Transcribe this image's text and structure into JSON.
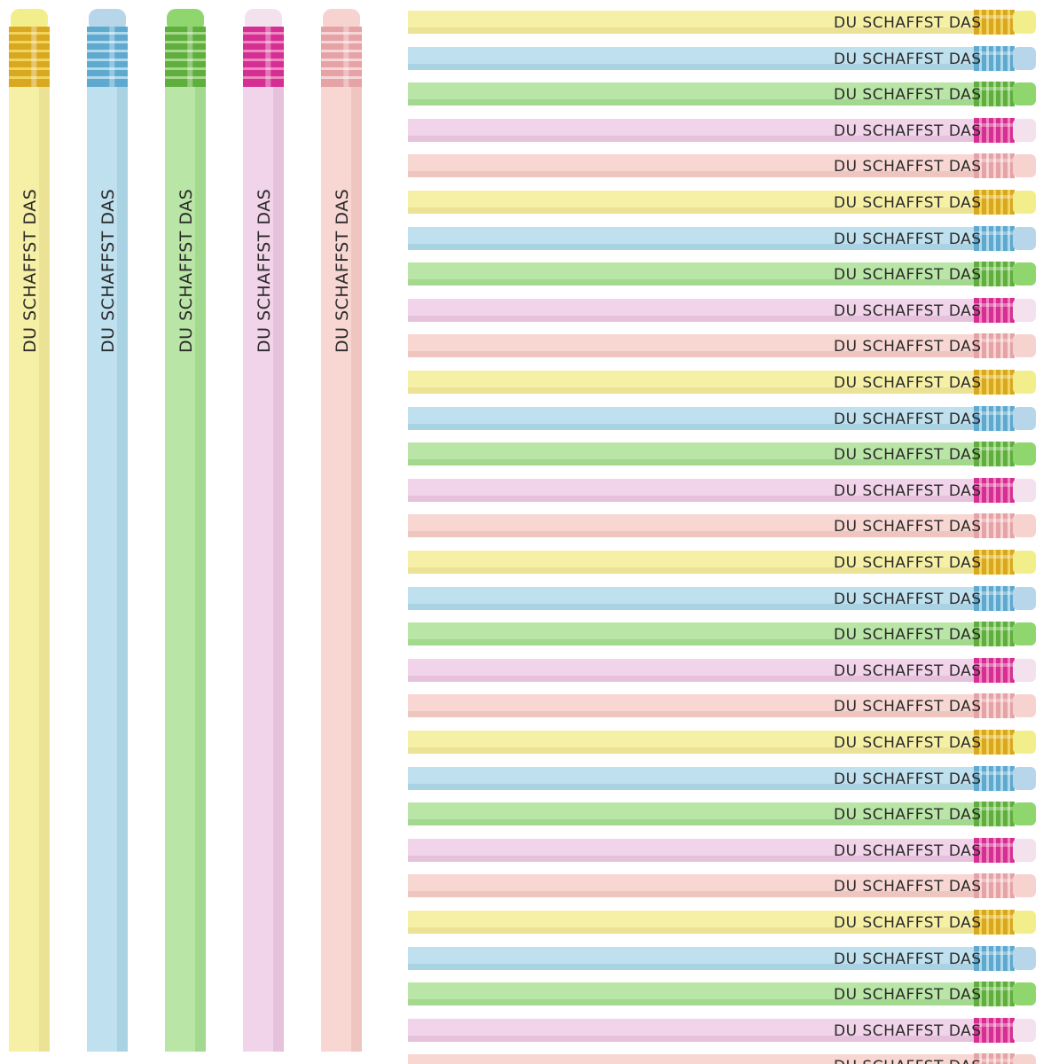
{
  "slogan": "DU SCHAFFST DAS",
  "palette": [
    {
      "name": "yellow",
      "body": "#f6efa6",
      "body_shade": "#ece295",
      "ferrule": "#d9a821",
      "ferrule_hi": "#f7dd6a",
      "eraser": "#f2ee8c"
    },
    {
      "name": "blue",
      "body": "#bfe0ee",
      "body_shade": "#a9d2e3",
      "ferrule": "#5fa9cf",
      "ferrule_hi": "#c3e6f5",
      "eraser": "#b7d6ea"
    },
    {
      "name": "green",
      "body": "#b9e6a7",
      "body_shade": "#a2d98e",
      "ferrule": "#5fae3e",
      "ferrule_hi": "#b5e59c",
      "eraser": "#8fd66e"
    },
    {
      "name": "pink",
      "body": "#f1d3ea",
      "body_shade": "#e6c1dc",
      "ferrule": "#d62f93",
      "ferrule_hi": "#f59ccc",
      "eraser": "#f4e1ee"
    },
    {
      "name": "peach",
      "body": "#f8d7d3",
      "body_shade": "#efc5c0",
      "ferrule": "#e5a3a6",
      "ferrule_hi": "#fbe1e2",
      "eraser": "#f6d3cf"
    }
  ],
  "vertical_pencils": [
    "yellow",
    "blue",
    "green",
    "pink",
    "peach"
  ],
  "horizontal_pencils": [
    "yellow",
    "blue",
    "green",
    "pink",
    "peach",
    "yellow",
    "blue",
    "green",
    "pink",
    "peach",
    "yellow",
    "blue",
    "green",
    "pink",
    "peach",
    "yellow",
    "blue",
    "green",
    "pink",
    "peach",
    "yellow",
    "blue",
    "green",
    "pink",
    "peach",
    "yellow",
    "blue",
    "green",
    "pink",
    "peach"
  ]
}
